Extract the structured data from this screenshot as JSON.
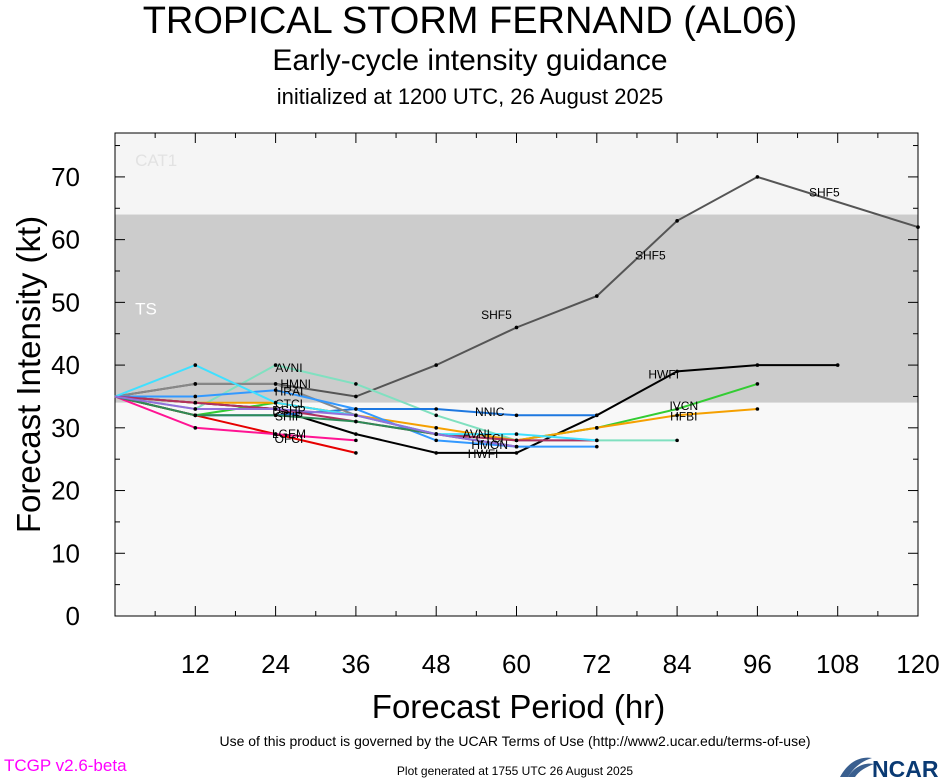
{
  "header": {
    "title": "TROPICAL STORM FERNAND (AL06)",
    "subtitle": "Early-cycle intensity guidance",
    "init": "initialized at 1200 UTC, 26 August 2025"
  },
  "footer": {
    "terms": "Use of this product is governed by the UCAR Terms of Use (http://www2.ucar.edu/terms-of-use)",
    "version": "TCGP v2.6-beta",
    "generated": "Plot generated at 1755 UTC   26 August 2025",
    "logo_text": "NCAR"
  },
  "chart_data": {
    "type": "line",
    "xlabel": "Forecast Period (hr)",
    "ylabel": "Forecast Intensity (kt)",
    "xlim": [
      0,
      120
    ],
    "ylim": [
      0,
      77
    ],
    "xticks": [
      12,
      24,
      36,
      48,
      60,
      72,
      84,
      96,
      108,
      120
    ],
    "yticks": [
      0,
      10,
      20,
      30,
      40,
      50,
      60,
      70
    ],
    "bands": [
      {
        "label": "CAT1",
        "from": 64,
        "to": 77,
        "color": "#f5f5f5",
        "label_color": "#e2e2e2"
      },
      {
        "label": "TS",
        "from": 34,
        "to": 64,
        "color": "#cccccc",
        "label_color": "#ffffff"
      },
      {
        "label": "",
        "from": 0,
        "to": 34,
        "color": "#f8f8f8",
        "label_color": ""
      }
    ],
    "series": [
      {
        "name": "SHF5",
        "color": "#555555",
        "label_at": [
          [
            57,
            48
          ],
          [
            80,
            57.5
          ],
          [
            106,
            67.5
          ]
        ],
        "x": [
          0,
          12,
          24,
          36,
          48,
          60,
          72,
          84,
          96,
          120
        ],
        "y": [
          35,
          37,
          37,
          35,
          40,
          46,
          51,
          63,
          70,
          62
        ]
      },
      {
        "name": "HWFI",
        "color": "#000000",
        "label_at": [
          [
            82,
            38.5
          ],
          [
            55,
            25.8
          ]
        ],
        "x": [
          0,
          12,
          24,
          36,
          48,
          60,
          72,
          84,
          96,
          108
        ],
        "y": [
          35,
          34,
          33,
          29,
          26,
          26,
          32,
          39,
          40,
          40
        ]
      },
      {
        "name": "AVNI",
        "color": "#80e0c0",
        "label_at": [
          [
            26,
            39.5
          ],
          [
            54,
            29
          ]
        ],
        "x": [
          0,
          12,
          24,
          36,
          48,
          60,
          72,
          84
        ],
        "y": [
          35,
          33,
          40,
          37,
          32,
          28,
          28,
          28
        ]
      },
      {
        "name": "NNIC",
        "color": "#1e78e0",
        "label_at": [
          [
            56,
            32.5
          ]
        ],
        "x": [
          0,
          12,
          24,
          36,
          48,
          60,
          72
        ],
        "y": [
          35,
          32,
          32,
          33,
          33,
          32,
          32
        ]
      },
      {
        "name": "IVCN",
        "color": "#33cc33",
        "label_at": [
          [
            85,
            33.5
          ]
        ],
        "x": [
          0,
          12,
          24,
          36,
          48,
          60,
          72,
          84,
          96
        ],
        "y": [
          35,
          32,
          34,
          32,
          29,
          28,
          30,
          33,
          37
        ]
      },
      {
        "name": "HFBI",
        "color": "#f5a000",
        "label_at": [
          [
            85,
            31.8
          ]
        ],
        "x": [
          0,
          12,
          24,
          36,
          48,
          60,
          72,
          84,
          96
        ],
        "y": [
          35,
          34,
          34,
          32,
          30,
          28,
          30,
          32,
          33
        ]
      },
      {
        "name": "HMNI",
        "color": "#888888",
        "label_at": [
          [
            27,
            37
          ]
        ],
        "x": [
          0,
          12,
          24,
          36
        ],
        "y": [
          35,
          37,
          37,
          32
        ]
      },
      {
        "name": "HRAI",
        "color": "#3399ff",
        "label_at": [
          [
            26,
            35.8
          ]
        ],
        "x": [
          0,
          12,
          24,
          36,
          48,
          60,
          72
        ],
        "y": [
          35,
          35,
          36,
          33,
          28,
          27,
          27
        ]
      },
      {
        "name": "DSHP",
        "color": "#b03060",
        "label_at": [
          [
            26,
            32.8
          ]
        ],
        "x": [
          0,
          12,
          24,
          36,
          48,
          60,
          72
        ],
        "y": [
          35,
          34,
          33,
          31,
          29,
          28,
          28
        ]
      },
      {
        "name": "LGEM",
        "color": "#e60000",
        "label_at": [
          [
            26,
            29
          ]
        ],
        "x": [
          0,
          12,
          24,
          36
        ],
        "y": [
          35,
          32,
          29,
          26
        ]
      },
      {
        "name": "CTCI",
        "color": "#40e0ff",
        "label_at": [
          [
            26,
            33.8
          ],
          [
            56,
            28.3
          ]
        ],
        "x": [
          0,
          12,
          24,
          36,
          48,
          60,
          72
        ],
        "y": [
          35,
          40,
          34,
          32,
          29,
          29,
          28
        ]
      },
      {
        "name": "OFCI",
        "color": "#ff1493",
        "label_at": [
          [
            26,
            28.2
          ]
        ],
        "x": [
          0,
          12,
          24,
          36
        ],
        "y": [
          35,
          30,
          29,
          28
        ]
      },
      {
        "name": "SHIP",
        "color": "#2e8b57",
        "label_at": [
          [
            26,
            31.8
          ]
        ],
        "x": [
          0,
          12,
          24,
          36,
          48,
          60
        ],
        "y": [
          35,
          32,
          32,
          31,
          29,
          27
        ]
      },
      {
        "name": "HMON",
        "color": "#9370db",
        "label_at": [
          [
            56,
            27.3
          ]
        ],
        "x": [
          0,
          12,
          24,
          36,
          48,
          60
        ],
        "y": [
          35,
          33,
          33,
          32,
          29,
          27
        ]
      }
    ]
  }
}
